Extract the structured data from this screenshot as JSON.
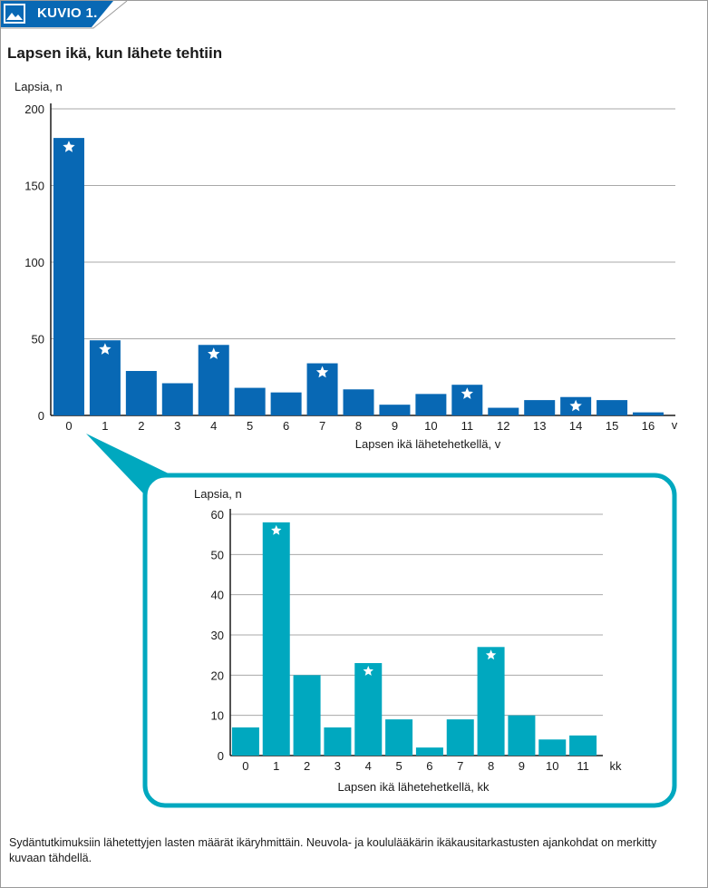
{
  "header": {
    "badge_label": "KUVIO 1."
  },
  "title": "Lapsen ikä, kun lähete tehtiin",
  "caption": "Sydäntutkimuksiin lähetettyjen lasten määrät ikäryhmittäin. Neuvola- ja koululääkärin ikäkausitarkastusten ajankohdat on merkitty kuvaan tähdellä.",
  "colors": {
    "main_bar": "#0868b4",
    "inset_bar": "#00a8bf",
    "badge": "#0868b4",
    "grid": "#a8a8a8"
  },
  "chart_data": [
    {
      "type": "bar",
      "ylabel": "Lapsia, n",
      "xlabel": "Lapsen ikä lähetehetkellä, v",
      "x_unit": "v",
      "categories": [
        "0",
        "1",
        "2",
        "3",
        "4",
        "5",
        "6",
        "7",
        "8",
        "9",
        "10",
        "11",
        "12",
        "13",
        "14",
        "15",
        "16"
      ],
      "values": [
        181,
        49,
        29,
        21,
        46,
        18,
        15,
        34,
        17,
        7,
        14,
        20,
        5,
        10,
        12,
        10,
        2
      ],
      "starred": [
        "0",
        "1",
        "4",
        "7",
        "11",
        "14"
      ],
      "yticks": [
        0,
        50,
        100,
        150,
        200
      ],
      "ylim": [
        0,
        200
      ],
      "grid": true
    },
    {
      "type": "bar",
      "ylabel": "Lapsia, n",
      "xlabel": "Lapsen ikä lähetehetkellä, kk",
      "x_unit": "kk",
      "categories": [
        "0",
        "1",
        "2",
        "3",
        "4",
        "5",
        "6",
        "7",
        "8",
        "9",
        "10",
        "11"
      ],
      "values": [
        7,
        58,
        20,
        7,
        23,
        9,
        2,
        9,
        27,
        10,
        4,
        5
      ],
      "starred": [
        "1",
        "4",
        "8"
      ],
      "yticks": [
        0,
        10,
        20,
        30,
        40,
        50,
        60
      ],
      "ylim": [
        0,
        60
      ],
      "grid": true
    }
  ]
}
